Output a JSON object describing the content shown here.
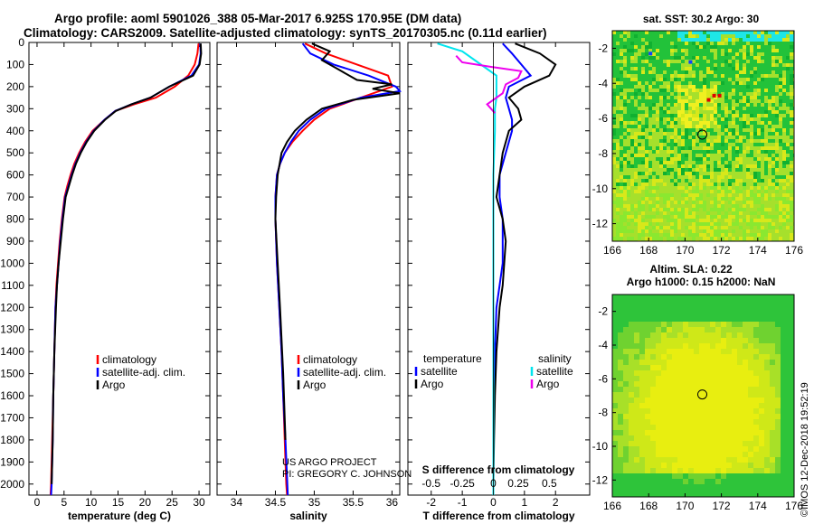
{
  "header": {
    "title_line1": "Argo profile: aoml 5901026_388 05-Mar-2017 6.925S 170.95E (DM data)",
    "title_line2": "Climatology: CARS2009. Satellite-adjusted climatology: synTS_20170305.nc (0.11d earlier)"
  },
  "footer": {
    "credit_line1": "US ARGO PROJECT",
    "credit_line2": "PI: GREGORY C. JOHNSON",
    "stamp": "©IMOS 12-Dec-2018 19:52:19"
  },
  "colors": {
    "climatology": "#ff0000",
    "satellite_adj": "#0000ff",
    "argo": "#000000",
    "sal_satellite": "#00e5ee",
    "sal_argo": "#ee00ee",
    "map_green": "#22c23a",
    "map_yellow": "#e8ee10"
  },
  "chart_data": [
    {
      "type": "line",
      "name": "temperature",
      "xlabel": "temperature (deg C)",
      "xlim": [
        -1.5,
        32
      ],
      "xticks": [
        0,
        5,
        10,
        15,
        20,
        25,
        30
      ],
      "xtick_labels": [
        "0",
        "5",
        "10",
        "15",
        "20",
        "25",
        "30"
      ],
      "ylim": [
        2050,
        0
      ],
      "yticks": [
        0,
        100,
        200,
        300,
        400,
        500,
        600,
        700,
        800,
        900,
        1000,
        1100,
        1200,
        1300,
        1400,
        1500,
        1600,
        1700,
        1800,
        1900,
        2000
      ],
      "ytick_labels": [
        "0",
        "100",
        "200",
        "300",
        "400",
        "500",
        "600",
        "700",
        "800",
        "900",
        "1000",
        "1100",
        "1200",
        "1300",
        "1400",
        "1500",
        "1600",
        "1700",
        "1800",
        "1900",
        "2000"
      ],
      "legend": [
        "climatology",
        "satellite-adj. clim.",
        "Argo"
      ],
      "legend_position": "lower-right",
      "series": [
        {
          "name": "climatology",
          "color_key": "climatology",
          "x": [
            29.9,
            29.7,
            29.2,
            28.0,
            25.5,
            22.0,
            18.0,
            14.5,
            12.5,
            10.3,
            8.9,
            7.8,
            6.9,
            6.2,
            5.6,
            5.1,
            4.6,
            4.2,
            3.9,
            3.6,
            3.4,
            3.2,
            3.0,
            2.8,
            2.7,
            2.6,
            2.5
          ],
          "y": [
            5,
            50,
            100,
            150,
            200,
            250,
            280,
            310,
            350,
            400,
            450,
            500,
            550,
            600,
            650,
            700,
            800,
            900,
            1000,
            1100,
            1200,
            1400,
            1600,
            1800,
            1900,
            2000,
            2050
          ]
        },
        {
          "name": "satellite-adj. clim.",
          "color_key": "satellite_adj",
          "x": [
            30.2,
            30.3,
            30.0,
            28.6,
            24.5,
            21.0,
            17.5,
            14.5,
            12.5,
            10.5,
            9.1,
            8.0,
            7.1,
            6.4,
            5.8,
            5.2,
            4.7,
            4.3,
            4.0,
            3.7,
            3.4,
            3.2,
            3.0,
            2.9,
            2.8,
            2.7,
            2.6
          ],
          "y": [
            5,
            50,
            100,
            150,
            200,
            250,
            280,
            310,
            350,
            400,
            450,
            500,
            550,
            600,
            650,
            700,
            800,
            900,
            1000,
            1100,
            1200,
            1400,
            1600,
            1800,
            1900,
            2000,
            2050
          ]
        },
        {
          "name": "Argo",
          "color_key": "argo",
          "x": [
            30.3,
            30.4,
            30.1,
            28.9,
            24.5,
            21.0,
            17.5,
            14.6,
            12.6,
            10.6,
            9.2,
            8.1,
            7.2,
            6.5,
            5.9,
            5.3,
            4.8,
            4.4,
            4.0,
            3.7,
            3.5,
            3.2,
            3.0,
            2.9,
            2.8,
            2.7
          ],
          "y": [
            5,
            50,
            100,
            150,
            200,
            250,
            280,
            310,
            350,
            400,
            450,
            500,
            550,
            600,
            650,
            700,
            800,
            900,
            1000,
            1100,
            1200,
            1400,
            1600,
            1800,
            1900,
            2000
          ]
        }
      ]
    },
    {
      "type": "line",
      "name": "salinity",
      "xlabel": "salinity",
      "xlim": [
        33.75,
        36.1
      ],
      "xticks": [
        34,
        34.5,
        35,
        35.5,
        36
      ],
      "xtick_labels": [
        "34",
        "34.5",
        "35",
        "35.5",
        "36"
      ],
      "ylim": [
        2050,
        0
      ],
      "legend": [
        "climatology",
        "satellite-adj. clim.",
        "Argo"
      ],
      "legend_position": "lower-right",
      "series": [
        {
          "name": "climatology",
          "color_key": "climatology",
          "x": [
            34.88,
            35.15,
            35.55,
            35.95,
            36.0,
            35.6,
            35.2,
            35.0,
            34.85,
            34.72,
            34.62,
            34.56,
            34.52,
            34.5,
            34.5,
            34.52,
            34.55,
            34.58,
            34.6,
            34.62,
            34.64,
            34.65
          ],
          "y": [
            5,
            50,
            100,
            150,
            200,
            250,
            300,
            350,
            400,
            450,
            500,
            550,
            600,
            700,
            800,
            1000,
            1200,
            1400,
            1600,
            1800,
            2000,
            2050
          ]
        },
        {
          "name": "satellite-adj. clim.",
          "color_key": "satellite_adj",
          "x": [
            34.85,
            34.95,
            35.25,
            35.7,
            36.05,
            36.1,
            35.6,
            35.15,
            34.95,
            34.8,
            34.7,
            34.62,
            34.56,
            34.52,
            34.5,
            34.5,
            34.52,
            34.55,
            34.58,
            34.6,
            34.63,
            34.66
          ],
          "y": [
            5,
            50,
            100,
            150,
            200,
            220,
            250,
            300,
            350,
            400,
            450,
            500,
            550,
            600,
            700,
            800,
            1000,
            1200,
            1400,
            1600,
            1800,
            2050
          ]
        },
        {
          "name": "Argo",
          "color_key": "argo",
          "x": [
            34.97,
            35.2,
            35.1,
            35.3,
            35.55,
            36.0,
            35.75,
            36.1,
            35.5,
            35.1,
            34.9,
            34.75,
            34.65,
            34.58,
            34.53,
            34.51,
            34.5,
            34.53,
            34.56,
            34.6,
            34.63
          ],
          "y": [
            5,
            40,
            80,
            120,
            170,
            190,
            210,
            230,
            260,
            300,
            350,
            400,
            450,
            500,
            600,
            700,
            800,
            1000,
            1200,
            1500,
            1800
          ]
        }
      ]
    },
    {
      "type": "line",
      "name": "difference",
      "xlabel": "T difference from climatology",
      "xlabel_top": "S difference from climatology",
      "xlim": [
        -2.75,
        3.1
      ],
      "xticks": [
        -2,
        -1,
        0,
        1,
        2
      ],
      "xtick_labels": [
        "-2",
        "-1",
        "0",
        "1",
        "2"
      ],
      "sticks": [
        -2.0,
        -1.0,
        0,
        0.8,
        1.8
      ],
      "stick_labels": [
        "-0.5",
        "-0.25",
        "0",
        "0.25",
        "0.5"
      ],
      "ylim": [
        2050,
        0
      ],
      "legend_temperature": {
        "title": "temperature",
        "items": [
          "satellite",
          "Argo"
        ]
      },
      "legend_salinity": {
        "title": "salinity",
        "items": [
          "satellite",
          "Argo"
        ]
      },
      "series": [
        {
          "name": "T satellite",
          "color_key": "satellite_adj",
          "x": [
            0.3,
            0.6,
            0.9,
            1.2,
            0.5,
            0.4,
            0.5,
            0.6,
            0.6,
            0.4,
            0.2,
            0.2,
            0.3,
            0.3,
            0.3,
            0.2,
            0.1,
            0.05,
            0.02,
            0.0,
            0.0,
            0.0
          ],
          "y": [
            5,
            50,
            100,
            150,
            200,
            250,
            300,
            350,
            400,
            500,
            600,
            700,
            800,
            900,
            1000,
            1100,
            1200,
            1400,
            1600,
            1800,
            2000,
            2050
          ]
        },
        {
          "name": "T Argo",
          "color_key": "argo",
          "x": [
            0.7,
            1.5,
            2.0,
            1.8,
            1.0,
            0.5,
            0.8,
            0.9,
            0.5,
            0.3,
            0.2,
            0.1,
            0.3,
            0.4,
            0.35,
            0.3,
            0.2,
            0.1,
            0.05,
            0.02,
            0.0,
            0.0
          ],
          "y": [
            5,
            50,
            100,
            150,
            200,
            250,
            300,
            350,
            400,
            500,
            600,
            700,
            800,
            900,
            1000,
            1100,
            1200,
            1400,
            1600,
            1800,
            2000,
            2050
          ]
        },
        {
          "name": "S satellite",
          "color_key": "sal_satellite",
          "x": [
            -1.8,
            -1.0,
            -0.5,
            0.1,
            0.1,
            0.05,
            0.05,
            0.0,
            0.0,
            0.0,
            0.0,
            0.0
          ],
          "y": [
            5,
            40,
            90,
            150,
            250,
            300,
            400,
            600,
            800,
            1100,
            1500,
            2050
          ]
        },
        {
          "name": "S Argo",
          "color_key": "sal_argo",
          "x": [
            -1.2,
            -1.0,
            -0.1,
            0.9,
            0.8,
            0.4,
            0.3,
            -0.2,
            0.05
          ],
          "y": [
            60,
            90,
            110,
            130,
            160,
            190,
            230,
            280,
            320
          ]
        }
      ]
    },
    {
      "type": "heatmap",
      "name": "sst_map",
      "title": "sat. SST: 30.2 Argo: 30",
      "xlim": [
        166,
        176
      ],
      "ylim": [
        -13,
        -1
      ],
      "xticks": [
        166,
        168,
        170,
        172,
        174,
        176
      ],
      "xtick_labels": [
        "166",
        "168",
        "170",
        "172",
        "174",
        "176"
      ],
      "yticks": [
        -2,
        -4,
        -6,
        -8,
        -10,
        -12
      ],
      "ytick_labels": [
        "-2",
        "-4",
        "-6",
        "-8",
        "-10",
        "-12"
      ],
      "float_position": [
        170.95,
        -6.925
      ]
    },
    {
      "type": "heatmap",
      "name": "sla_map",
      "title_line1": "Altim. SLA: 0.22",
      "title_line2": "Argo h1000: 0.15 h2000: NaN",
      "xlim": [
        166,
        176
      ],
      "ylim": [
        -13,
        -1
      ],
      "xticks": [
        166,
        168,
        170,
        172,
        174,
        176
      ],
      "xtick_labels": [
        "166",
        "168",
        "170",
        "172",
        "174",
        "176"
      ],
      "yticks": [
        -2,
        -4,
        -6,
        -8,
        -10,
        -12
      ],
      "ytick_labels": [
        "-2",
        "-4",
        "-6",
        "-8",
        "-10",
        "-12"
      ],
      "float_position": [
        170.95,
        -6.925
      ]
    }
  ]
}
